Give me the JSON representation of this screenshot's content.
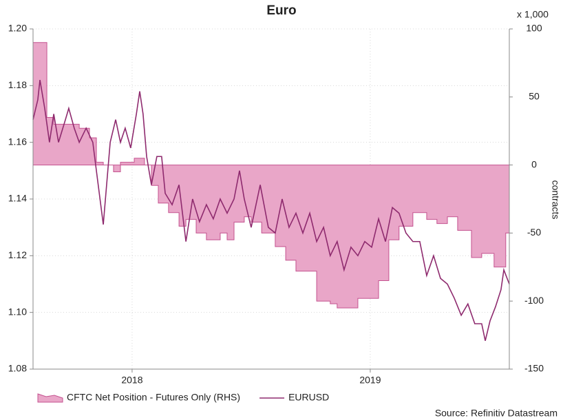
{
  "chart_data": {
    "type": "line",
    "title": "Euro",
    "y2_unit": "x 1,000",
    "y2_label": "contracts",
    "source": "Source: Refinitiv Datastream",
    "xlim": [
      2017.584,
      2019.584
    ],
    "xticks": [
      {
        "value": 2018,
        "label": "2018"
      },
      {
        "value": 2019,
        "label": "2019"
      }
    ],
    "ylim": [
      1.08,
      1.2
    ],
    "yticks": [
      1.08,
      {
        "value": 1.1,
        "label": "1.10"
      },
      1.12,
      1.14,
      1.16,
      1.18,
      {
        "value": 1.2,
        "label": "1.20"
      }
    ],
    "y2lim": [
      -150,
      100
    ],
    "y2ticks": [
      -150,
      -100,
      -50,
      0,
      50,
      100
    ],
    "grid": true,
    "legend": "bottom",
    "series": [
      {
        "name": "CFTC Net Position - Futures Only (RHS)",
        "type": "area",
        "step": true,
        "axis": "y2",
        "color": "#e9a6c8",
        "edge_color": "#c4528f",
        "x": [
          2017.584,
          2017.642,
          2017.671,
          2017.72,
          2017.778,
          2017.821,
          2017.85,
          2017.879,
          2017.922,
          2017.951,
          2018.009,
          2018.052,
          2018.081,
          2018.11,
          2018.153,
          2018.197,
          2018.226,
          2018.269,
          2018.312,
          2018.37,
          2018.399,
          2018.428,
          2018.471,
          2018.5,
          2018.544,
          2018.601,
          2018.645,
          2018.688,
          2018.775,
          2018.832,
          2018.861,
          2018.948,
          2019.035,
          2019.078,
          2019.121,
          2019.179,
          2019.237,
          2019.28,
          2019.324,
          2019.367,
          2019.425,
          2019.468,
          2019.52,
          2019.569,
          2019.584
        ],
        "values": [
          90,
          35,
          30,
          30,
          27,
          20,
          2,
          0,
          -5,
          2,
          5,
          0,
          -15,
          -28,
          -35,
          -45,
          -40,
          -50,
          -55,
          -50,
          -55,
          -42,
          -38,
          -42,
          -50,
          -60,
          -70,
          -78,
          -100,
          -102,
          -105,
          -98,
          -85,
          -55,
          -45,
          -35,
          -40,
          -43,
          -38,
          -48,
          -68,
          -65,
          -75,
          -50,
          -50
        ]
      },
      {
        "name": "EURUSD",
        "type": "line",
        "color": "#8e2a6e",
        "x": [
          2017.584,
          2017.604,
          2017.613,
          2017.633,
          2017.653,
          2017.671,
          2017.691,
          2017.72,
          2017.734,
          2017.757,
          2017.778,
          2017.807,
          2017.835,
          2017.85,
          2017.879,
          2017.908,
          2017.931,
          2017.951,
          2017.971,
          2017.994,
          2018.018,
          2018.032,
          2018.046,
          2018.061,
          2018.081,
          2018.104,
          2018.124,
          2018.139,
          2018.168,
          2018.197,
          2018.226,
          2018.254,
          2018.283,
          2018.312,
          2018.341,
          2018.37,
          2018.399,
          2018.428,
          2018.451,
          2018.471,
          2018.5,
          2018.538,
          2018.572,
          2018.601,
          2018.63,
          2018.659,
          2018.688,
          2018.717,
          2018.746,
          2018.775,
          2018.804,
          2018.832,
          2018.861,
          2018.89,
          2018.919,
          2018.948,
          2018.977,
          2019.006,
          2019.035,
          2019.064,
          2019.093,
          2019.121,
          2019.15,
          2019.179,
          2019.208,
          2019.237,
          2019.266,
          2019.295,
          2019.324,
          2019.353,
          2019.382,
          2019.41,
          2019.439,
          2019.468,
          2019.483,
          2019.503,
          2019.526,
          2019.549,
          2019.561,
          2019.584
        ],
        "values": [
          1.168,
          1.175,
          1.182,
          1.172,
          1.16,
          1.17,
          1.16,
          1.168,
          1.172,
          1.165,
          1.16,
          1.165,
          1.16,
          1.15,
          1.131,
          1.16,
          1.168,
          1.16,
          1.165,
          1.158,
          1.17,
          1.178,
          1.17,
          1.155,
          1.145,
          1.155,
          1.155,
          1.142,
          1.138,
          1.145,
          1.125,
          1.14,
          1.132,
          1.138,
          1.133,
          1.14,
          1.135,
          1.14,
          1.15,
          1.14,
          1.13,
          1.145,
          1.13,
          1.128,
          1.14,
          1.13,
          1.135,
          1.128,
          1.135,
          1.125,
          1.13,
          1.12,
          1.125,
          1.115,
          1.123,
          1.12,
          1.125,
          1.123,
          1.133,
          1.125,
          1.137,
          1.135,
          1.128,
          1.125,
          1.125,
          1.113,
          1.12,
          1.112,
          1.11,
          1.105,
          1.099,
          1.103,
          1.096,
          1.096,
          1.09,
          1.097,
          1.102,
          1.108,
          1.115,
          1.11
        ]
      }
    ]
  }
}
